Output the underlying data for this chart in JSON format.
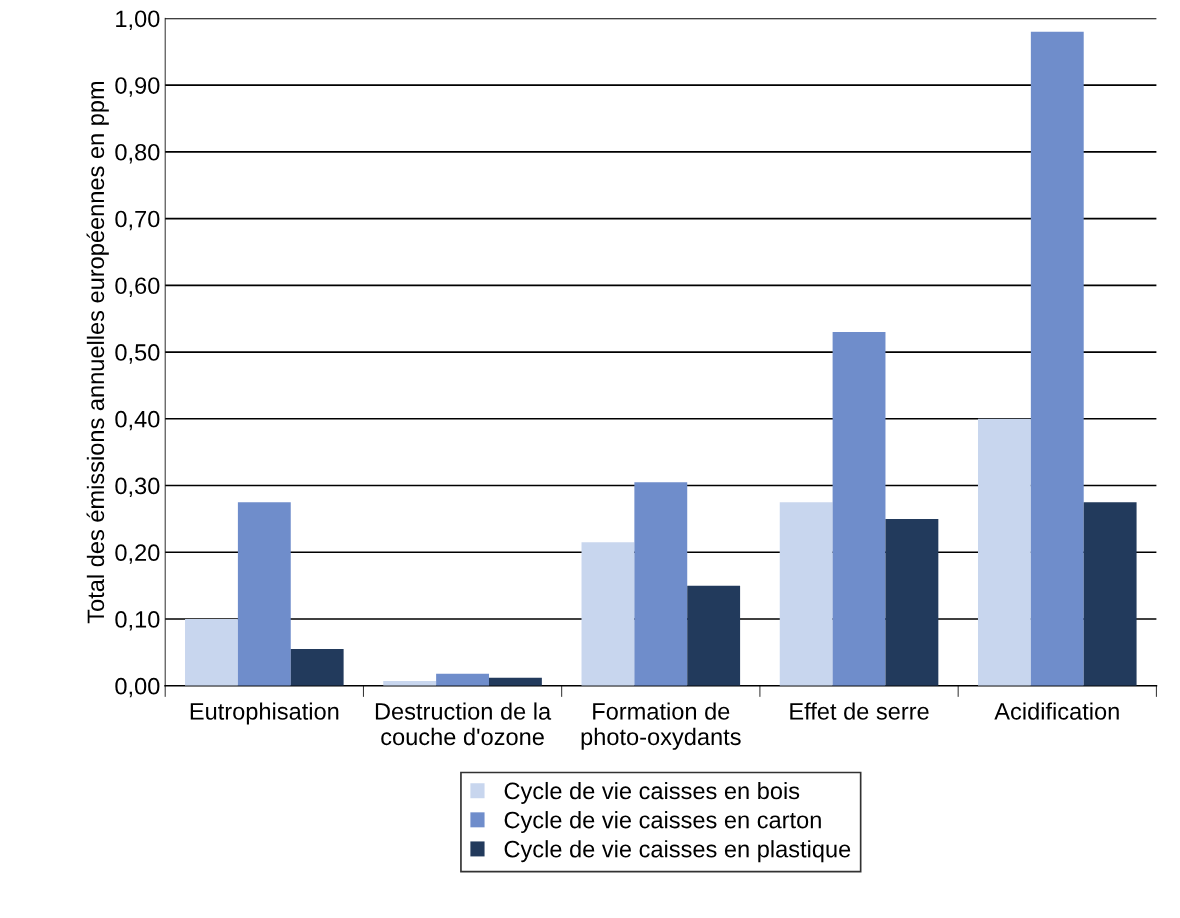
{
  "chart_data": {
    "type": "bar",
    "ylabel": "Total des émissions annuelles européennes en ppm",
    "categories": [
      "Eutrophisation",
      "Destruction de la\ncouche d'ozone",
      "Formation de\nphoto-oxydants",
      "Effet de serre",
      "Acidification"
    ],
    "series": [
      {
        "name": "Cycle de vie caisses en bois",
        "color": "#c8d6ee",
        "values": [
          0.1,
          0.007,
          0.215,
          0.275,
          0.4
        ]
      },
      {
        "name": "Cycle de vie caisses en carton",
        "color": "#6f8dcb",
        "values": [
          0.275,
          0.018,
          0.305,
          0.53,
          0.98
        ]
      },
      {
        "name": "Cycle de vie caisses en plastique",
        "color": "#223a5c",
        "values": [
          0.055,
          0.012,
          0.15,
          0.25,
          0.275
        ]
      }
    ],
    "ylim": [
      0,
      1
    ],
    "yticks": [
      {
        "value": 0,
        "label": "0,00"
      },
      {
        "value": 0.1,
        "label": "0,10"
      },
      {
        "value": 0.2,
        "label": "0,20"
      },
      {
        "value": 0.3,
        "label": "0,30"
      },
      {
        "value": 0.4,
        "label": "0,40"
      },
      {
        "value": 0.5,
        "label": "0,50"
      },
      {
        "value": 0.6,
        "label": "0,60"
      },
      {
        "value": 0.7,
        "label": "0,70"
      },
      {
        "value": 0.8,
        "label": "0,80"
      },
      {
        "value": 0.9,
        "label": "0,90"
      },
      {
        "value": 1,
        "label": "1,00"
      }
    ],
    "grid": "y",
    "legend": "bottom"
  }
}
